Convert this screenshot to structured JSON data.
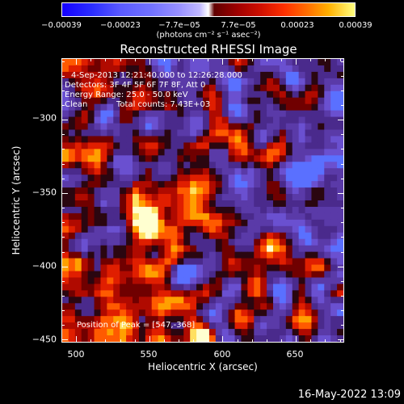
{
  "chart_data": {
    "type": "heatmap",
    "title": "Reconstructed RHESSI Image",
    "xlabel": "Heliocentric X (arcsec)",
    "ylabel": "Heliocentric Y (arcsec)",
    "xlim": [
      490,
      683
    ],
    "ylim": [
      -452,
      -258
    ],
    "x_ticks": [
      "500",
      "550",
      "600",
      "650"
    ],
    "x_tick_values": [
      500,
      550,
      600,
      650
    ],
    "y_ticks": [
      "−300",
      "−350",
      "−400",
      "−450"
    ],
    "y_tick_values": [
      -300,
      -350,
      -400,
      -450
    ],
    "colorbar": {
      "ticks": [
        "−0.00039",
        "−0.00023",
        "−7.7e−05",
        "7.7e−05",
        "0.00023",
        "0.00039"
      ],
      "tick_values": [
        -0.00039,
        -0.00023,
        -7.7e-05,
        7.7e-05,
        0.00023,
        0.00039
      ],
      "unit": "(photons cm⁻² s⁻¹ asec⁻²)",
      "range": [
        -0.00039,
        0.00039
      ]
    },
    "annotations": {
      "time_range": "4-Sep-2013 12:21:40.000 to 12:26:28.000",
      "detectors": "Detectors: 3F 4F 5F 6F 7F 8F, Att 0",
      "energy": "Energy Range: 25.0 - 50.0 keV",
      "algorithm": "Clean",
      "counts": "Total counts: 7.43E+03",
      "peak": "Position of Peak = [547,-368]"
    },
    "peak_position": [
      547,
      -368
    ]
  },
  "footer": {
    "timestamp": "16-May-2022 13:09"
  }
}
